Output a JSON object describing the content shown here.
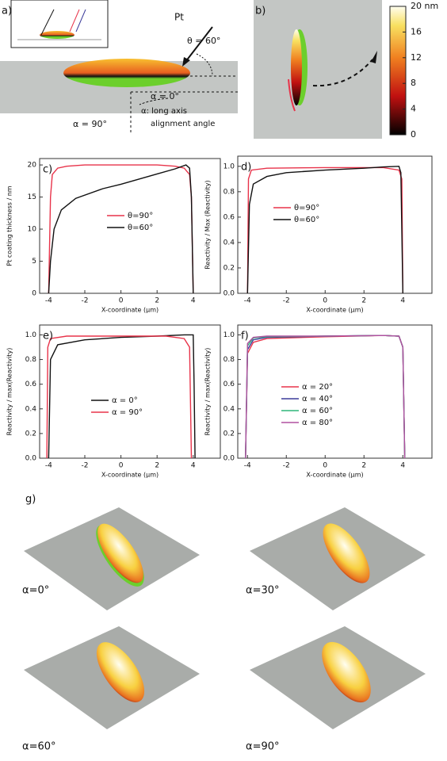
{
  "panel_a": {
    "label": "a)",
    "source": "Pt",
    "theta": "θ = 60°",
    "alpha0": "α = 0°",
    "alpha_note_1": "α: long axis",
    "alpha_note_2": "alignment angle",
    "alpha90": "α = 90°"
  },
  "panel_b": {
    "label": "b)",
    "colorbar": {
      "ticks": [
        {
          "value": 20,
          "label": "20 nm"
        },
        16,
        12,
        8,
        4,
        0
      ],
      "lim": [
        0,
        20
      ]
    }
  },
  "panel_g": {
    "label": "g)",
    "views": [
      "α=0°",
      "α=30°",
      "α=60°",
      "α=90°"
    ]
  },
  "chart_data": [
    {
      "type": "line",
      "label": "c)",
      "xlabel": "X-coordinate (µm)",
      "ylabel": "Pt coating thickness / nm",
      "xlim": [
        -4.5,
        5.5
      ],
      "xticks": [
        -4,
        -2,
        0,
        2,
        4
      ],
      "ylim": [
        0,
        21
      ],
      "yticks": [
        0,
        5,
        10,
        15,
        20
      ],
      "series": [
        {
          "name": "θ=90°",
          "color": "#e8334a",
          "x": [
            -4,
            -3.9,
            -3.8,
            -3.5,
            -3,
            -2,
            0,
            2,
            3,
            3.5,
            3.8,
            3.9,
            4
          ],
          "values": [
            0,
            15,
            18.5,
            19.5,
            19.8,
            20,
            20,
            20,
            19.8,
            19.5,
            18.5,
            15,
            0
          ]
        },
        {
          "name": "θ=60°",
          "color": "#111111",
          "x": [
            -4,
            -3.9,
            -3.7,
            -3.3,
            -2.5,
            -1,
            0,
            1,
            2,
            3,
            3.6,
            3.8,
            3.9,
            4
          ],
          "values": [
            0,
            5,
            10,
            13,
            14.8,
            16.3,
            17,
            17.8,
            18.6,
            19.4,
            20,
            19.5,
            15,
            0
          ]
        }
      ]
    },
    {
      "type": "line",
      "label": "d)",
      "xlabel": "X-coordinate (µm)",
      "ylabel": "Reactivity / Max (Reactivity)",
      "xlim": [
        -4.5,
        5.5
      ],
      "xticks": [
        -4,
        -2,
        0,
        2,
        4
      ],
      "ylim": [
        0,
        1.08
      ],
      "yticks": [
        {
          "value": 0,
          "label": "0.0"
        },
        {
          "value": 0.2,
          "label": "0.2"
        },
        {
          "value": 0.4,
          "label": "0.4"
        },
        {
          "value": 0.6,
          "label": "0.6"
        },
        {
          "value": 0.8,
          "label": "0.8"
        },
        {
          "value": 1,
          "label": "1.0"
        }
      ],
      "series": [
        {
          "name": "θ=90°",
          "color": "#e8334a",
          "x": [
            -4,
            -3.95,
            -3.8,
            -3,
            0,
            3,
            3.8,
            3.95,
            4
          ],
          "values": [
            0,
            0.9,
            0.97,
            0.985,
            0.99,
            0.99,
            0.97,
            0.9,
            0
          ]
        },
        {
          "name": "θ=60°",
          "color": "#111111",
          "x": [
            -4,
            -3.9,
            -3.7,
            -3,
            -2,
            0,
            2,
            3,
            3.8,
            3.9,
            4
          ],
          "values": [
            0,
            0.7,
            0.86,
            0.92,
            0.95,
            0.97,
            0.985,
            0.995,
            1,
            0.95,
            0
          ]
        }
      ]
    },
    {
      "type": "line",
      "label": "e)",
      "xlabel": "X-coordinate (µm)",
      "ylabel": "Reactivity / max(Reactivity)",
      "xlim": [
        -4.5,
        5.5
      ],
      "xticks": [
        -4,
        -2,
        0,
        2,
        4
      ],
      "ylim": [
        0,
        1.08
      ],
      "yticks": [
        {
          "value": 0,
          "label": "0.0"
        },
        {
          "value": 0.2,
          "label": "0.2"
        },
        {
          "value": 0.4,
          "label": "0.4"
        },
        {
          "value": 0.6,
          "label": "0.6"
        },
        {
          "value": 0.8,
          "label": "0.8"
        },
        {
          "value": 1,
          "label": "1.0"
        }
      ],
      "series": [
        {
          "name": "α = 0°",
          "color": "#111111",
          "x": [
            -4,
            -3.9,
            -3.5,
            -2,
            0,
            2,
            3.5,
            4,
            4.05,
            4.1
          ],
          "values": [
            0,
            0.8,
            0.92,
            0.96,
            0.98,
            0.99,
            1,
            1,
            0.6,
            0
          ]
        },
        {
          "name": "α = 90°",
          "color": "#e8334a",
          "x": [
            -4.1,
            -4.05,
            -3.9,
            -3,
            0,
            2.5,
            3.5,
            3.8,
            3.9
          ],
          "values": [
            0,
            0.9,
            0.97,
            0.99,
            0.99,
            0.99,
            0.97,
            0.9,
            0
          ]
        }
      ]
    },
    {
      "type": "line",
      "label": "f)",
      "xlabel": "X-coordinate (µm)",
      "ylabel": "Reactivity / max(Reactivity)",
      "xlim": [
        -4.5,
        5.5
      ],
      "xticks": [
        -4,
        -2,
        0,
        2,
        4
      ],
      "ylim": [
        0,
        1.08
      ],
      "yticks": [
        {
          "value": 0,
          "label": "0.0"
        },
        {
          "value": 0.2,
          "label": "0.2"
        },
        {
          "value": 0.4,
          "label": "0.4"
        },
        {
          "value": 0.6,
          "label": "0.6"
        },
        {
          "value": 0.8,
          "label": "0.8"
        },
        {
          "value": 1,
          "label": "1.0"
        }
      ],
      "series": [
        {
          "name": "α = 20°",
          "color": "#e8334a",
          "x": [
            -4.1,
            -4,
            -3.7,
            -3,
            0,
            3,
            3.8,
            4,
            4.1
          ],
          "values": [
            0,
            0.85,
            0.94,
            0.97,
            0.985,
            0.995,
            0.99,
            0.9,
            0
          ]
        },
        {
          "name": "α = 40°",
          "color": "#3b3b9a",
          "x": [
            -4.1,
            -4,
            -3.7,
            -3,
            0,
            3,
            3.8,
            4,
            4.1
          ],
          "values": [
            0,
            0.88,
            0.96,
            0.98,
            0.99,
            0.995,
            0.99,
            0.9,
            0
          ]
        },
        {
          "name": "α = 60°",
          "color": "#2fb57a",
          "x": [
            -4.1,
            -4,
            -3.7,
            -3,
            0,
            3,
            3.8,
            4,
            4.1
          ],
          "values": [
            0,
            0.91,
            0.975,
            0.985,
            0.99,
            0.995,
            0.99,
            0.9,
            0
          ]
        },
        {
          "name": "α = 80°",
          "color": "#b050a0",
          "x": [
            -4.1,
            -4,
            -3.7,
            -3,
            0,
            3,
            3.8,
            4,
            4.1
          ],
          "values": [
            0,
            0.93,
            0.98,
            0.99,
            0.99,
            0.995,
            0.99,
            0.9,
            0
          ]
        }
      ]
    }
  ]
}
